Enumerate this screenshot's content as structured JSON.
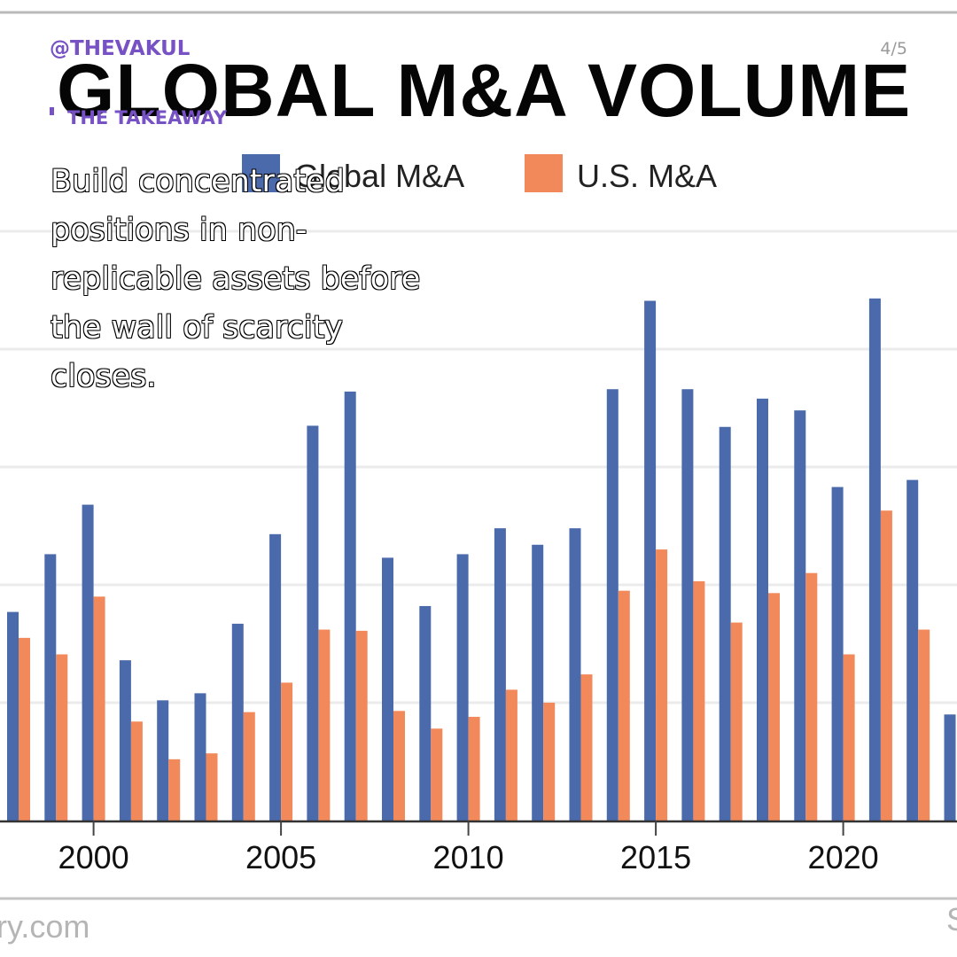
{
  "overlay": {
    "handle": "@THEVAKUL",
    "page_counter": "4/5",
    "section_label": "THE TAKEAWAY",
    "accent_color": "#7752c4",
    "takeaway_text": "Build concentrated positions in non-replicable assets before the wall of scarcity closes."
  },
  "chart_data": {
    "type": "bar",
    "title": "GLOBAL M&A VOLUME",
    "xlabel": "",
    "ylabel": "",
    "y_units_note": "No y-axis labels visible; values expressed in gridline-step units",
    "ylim": [
      0,
      5
    ],
    "grid": true,
    "legend_position": "top",
    "source_text": "ry.com",
    "source_text_right": "S",
    "x_tick_labels": [
      "2000",
      "2005",
      "2010",
      "2015",
      "2020"
    ],
    "categories": [
      "1998",
      "1999",
      "2000",
      "2001",
      "2002",
      "2003",
      "2004",
      "2005",
      "2006",
      "2007",
      "2008",
      "2009",
      "2010",
      "2011",
      "2012",
      "2013",
      "2014",
      "2015",
      "2016",
      "2017",
      "2018",
      "2019",
      "2020",
      "2021",
      "2022",
      "2023"
    ],
    "series": [
      {
        "name": "Global M&A",
        "color": "#4a6aac",
        "values": [
          1.77,
          2.26,
          2.68,
          1.36,
          1.02,
          1.08,
          1.67,
          2.43,
          3.35,
          3.64,
          2.23,
          1.82,
          2.26,
          2.48,
          2.34,
          2.48,
          3.66,
          4.41,
          3.66,
          3.34,
          3.58,
          3.48,
          2.83,
          4.43,
          2.89,
          0.9
        ]
      },
      {
        "name": "U.S. M&A",
        "color": "#f2895a",
        "values": [
          1.55,
          1.41,
          1.9,
          0.84,
          0.52,
          0.57,
          0.92,
          1.17,
          1.62,
          1.61,
          0.93,
          0.78,
          0.88,
          1.11,
          1.0,
          1.24,
          1.95,
          2.3,
          2.03,
          1.68,
          1.93,
          2.1,
          1.41,
          2.63,
          1.62,
          null
        ]
      }
    ]
  }
}
